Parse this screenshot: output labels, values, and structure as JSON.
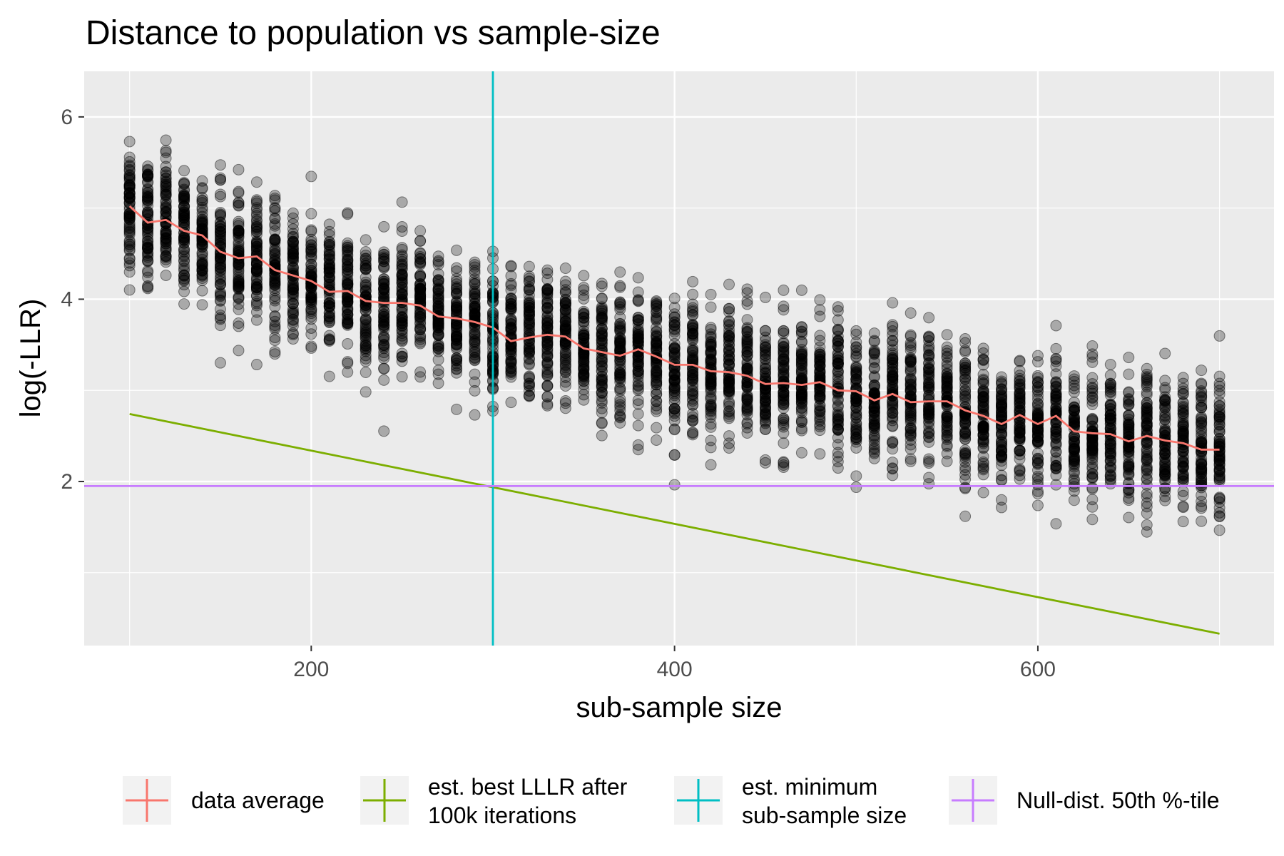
{
  "chart_data": {
    "type": "scatter",
    "title": "Distance to population vs sample-size",
    "xlabel": "sub-sample size",
    "ylabel": "log(-LLR)",
    "xlim": [
      75,
      730
    ],
    "ylim": [
      0.2,
      6.5
    ],
    "x_ticks": [
      200,
      400,
      600
    ],
    "y_ticks": [
      2,
      4,
      6
    ],
    "grid": true,
    "background": "#ebebeb",
    "legend_position": "bottom",
    "scatter": {
      "x": [
        100,
        110,
        120,
        130,
        140,
        150,
        160,
        170,
        180,
        190,
        200,
        210,
        220,
        230,
        240,
        250,
        260,
        270,
        280,
        290,
        300,
        310,
        320,
        330,
        340,
        350,
        360,
        370,
        380,
        390,
        400,
        410,
        420,
        430,
        440,
        450,
        460,
        470,
        480,
        490,
        500,
        510,
        520,
        530,
        540,
        550,
        560,
        570,
        580,
        590,
        600,
        610,
        620,
        630,
        640,
        650,
        660,
        670,
        680,
        690,
        700
      ],
      "mean": [
        5.02,
        4.84,
        4.87,
        4.75,
        4.7,
        4.52,
        4.45,
        4.47,
        4.32,
        4.26,
        4.2,
        4.08,
        4.09,
        3.98,
        3.96,
        3.96,
        3.93,
        3.81,
        3.79,
        3.75,
        3.69,
        3.54,
        3.58,
        3.61,
        3.59,
        3.46,
        3.42,
        3.38,
        3.45,
        3.37,
        3.28,
        3.28,
        3.21,
        3.2,
        3.16,
        3.07,
        3.08,
        3.06,
        3.09,
        3.0,
        2.99,
        2.89,
        2.96,
        2.87,
        2.88,
        2.88,
        2.78,
        2.72,
        2.63,
        2.73,
        2.63,
        2.72,
        2.55,
        2.53,
        2.52,
        2.44,
        2.5,
        2.45,
        2.42,
        2.35,
        2.35
      ],
      "point_count_per_x": 70,
      "spread_sd": 0.35,
      "point_color": "#000000",
      "point_alpha": 0.28
    },
    "series": [
      {
        "name": "data average",
        "type": "line",
        "color": "#f8766d",
        "x": [
          100,
          110,
          120,
          130,
          140,
          150,
          160,
          170,
          180,
          190,
          200,
          210,
          220,
          230,
          240,
          250,
          260,
          270,
          280,
          290,
          300,
          310,
          320,
          330,
          340,
          350,
          360,
          370,
          380,
          390,
          400,
          410,
          420,
          430,
          440,
          450,
          460,
          470,
          480,
          490,
          500,
          510,
          520,
          530,
          540,
          550,
          560,
          570,
          580,
          590,
          600,
          610,
          620,
          630,
          640,
          650,
          660,
          670,
          680,
          690,
          700
        ],
        "y": [
          5.02,
          4.84,
          4.87,
          4.75,
          4.7,
          4.52,
          4.45,
          4.47,
          4.32,
          4.26,
          4.2,
          4.08,
          4.09,
          3.98,
          3.96,
          3.96,
          3.93,
          3.81,
          3.79,
          3.75,
          3.69,
          3.54,
          3.58,
          3.61,
          3.59,
          3.46,
          3.42,
          3.38,
          3.45,
          3.37,
          3.28,
          3.28,
          3.21,
          3.2,
          3.16,
          3.07,
          3.08,
          3.06,
          3.09,
          3.0,
          2.99,
          2.89,
          2.96,
          2.87,
          2.88,
          2.88,
          2.78,
          2.72,
          2.63,
          2.73,
          2.63,
          2.72,
          2.55,
          2.53,
          2.52,
          2.44,
          2.5,
          2.45,
          2.42,
          2.35,
          2.35
        ]
      },
      {
        "name": "est. best LLLR after 100k iterations",
        "type": "line",
        "color": "#7cae00",
        "x": [
          100,
          700
        ],
        "y": [
          2.74,
          0.33
        ]
      },
      {
        "name": "est. minimum sub-sample size",
        "type": "vline",
        "color": "#00bfc4",
        "x": 300
      },
      {
        "name": "Null-dist. 50th %-tile",
        "type": "hline",
        "color": "#c77cff",
        "y": 1.95
      }
    ],
    "legend": [
      {
        "lines": [
          "data average"
        ],
        "color": "#f8766d"
      },
      {
        "lines": [
          "est. best LLLR after",
          "100k iterations"
        ],
        "color": "#7cae00"
      },
      {
        "lines": [
          "est. minimum",
          "sub-sample size"
        ],
        "color": "#00bfc4"
      },
      {
        "lines": [
          "Null-dist. 50th %-tile"
        ],
        "color": "#c77cff"
      }
    ]
  }
}
